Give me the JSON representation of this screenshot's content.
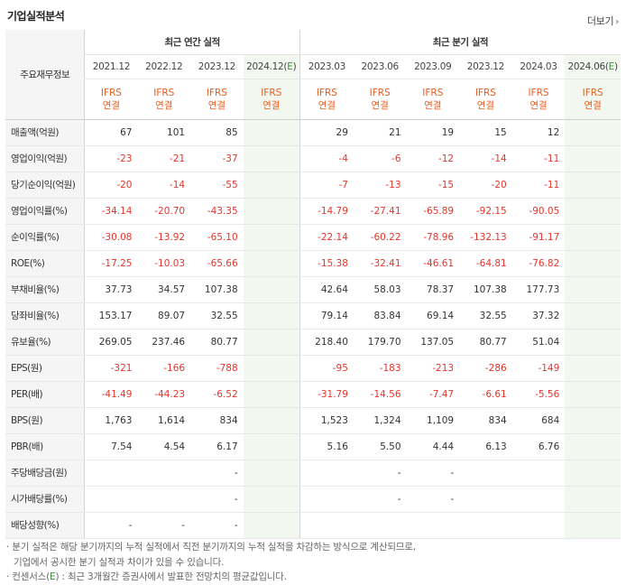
{
  "title": "기업실적분석",
  "more_label": "더보기",
  "header": {
    "label": "주요재무정보",
    "annual_group": "최근 연간 실적",
    "quarter_group": "최근 분기 실적",
    "annual_years": [
      "2021.12",
      "2022.12",
      "2023.12",
      "2024.12(E)"
    ],
    "quarter_periods": [
      "2023.03",
      "2023.06",
      "2023.09",
      "2023.12",
      "2024.03",
      "2024.06(E)"
    ],
    "ifrs_top": "IFRS",
    "ifrs_bottom": "연결"
  },
  "rows": [
    {
      "label": "매출액(억원)",
      "annual": [
        "67",
        "101",
        "85",
        ""
      ],
      "quarter": [
        "29",
        "21",
        "19",
        "15",
        "12",
        ""
      ]
    },
    {
      "label": "영업이익(억원)",
      "annual": [
        "-23",
        "-21",
        "-37",
        ""
      ],
      "quarter": [
        "-4",
        "-6",
        "-12",
        "-14",
        "-11",
        ""
      ]
    },
    {
      "label": "당기순이익(억원)",
      "annual": [
        "-20",
        "-14",
        "-55",
        ""
      ],
      "quarter": [
        "-7",
        "-13",
        "-15",
        "-20",
        "-11",
        ""
      ]
    },
    {
      "label": "영업이익률(%)",
      "annual": [
        "-34.14",
        "-20.70",
        "-43.35",
        ""
      ],
      "quarter": [
        "-14.79",
        "-27.41",
        "-65.89",
        "-92.15",
        "-90.05",
        ""
      ]
    },
    {
      "label": "순이익률(%)",
      "annual": [
        "-30.08",
        "-13.92",
        "-65.10",
        ""
      ],
      "quarter": [
        "-22.14",
        "-60.22",
        "-78.96",
        "-132.13",
        "-91.17",
        ""
      ]
    },
    {
      "label": "ROE(%)",
      "annual": [
        "-17.25",
        "-10.03",
        "-65.66",
        ""
      ],
      "quarter": [
        "-15.38",
        "-32.41",
        "-46.61",
        "-64.81",
        "-76.82",
        ""
      ]
    },
    {
      "label": "부채비율(%)",
      "annual": [
        "37.73",
        "34.57",
        "107.38",
        ""
      ],
      "quarter": [
        "42.64",
        "58.03",
        "78.37",
        "107.38",
        "177.73",
        ""
      ]
    },
    {
      "label": "당좌비율(%)",
      "annual": [
        "153.17",
        "89.07",
        "32.55",
        ""
      ],
      "quarter": [
        "79.14",
        "83.84",
        "69.14",
        "32.55",
        "37.32",
        ""
      ]
    },
    {
      "label": "유보율(%)",
      "annual": [
        "269.05",
        "237.46",
        "80.77",
        ""
      ],
      "quarter": [
        "218.40",
        "179.70",
        "137.05",
        "80.77",
        "51.04",
        ""
      ]
    },
    {
      "label": "EPS(원)",
      "annual": [
        "-321",
        "-166",
        "-788",
        ""
      ],
      "quarter": [
        "-95",
        "-183",
        "-213",
        "-286",
        "-149",
        ""
      ]
    },
    {
      "label": "PER(배)",
      "annual": [
        "-41.49",
        "-44.23",
        "-6.52",
        ""
      ],
      "quarter": [
        "-31.79",
        "-14.56",
        "-7.47",
        "-6.61",
        "-5.56",
        ""
      ]
    },
    {
      "label": "BPS(원)",
      "annual": [
        "1,763",
        "1,614",
        "834",
        ""
      ],
      "quarter": [
        "1,523",
        "1,324",
        "1,109",
        "834",
        "684",
        ""
      ]
    },
    {
      "label": "PBR(배)",
      "annual": [
        "7.54",
        "4.54",
        "6.17",
        ""
      ],
      "quarter": [
        "5.16",
        "5.50",
        "4.44",
        "6.13",
        "6.76",
        ""
      ]
    },
    {
      "label": "주당배당금(원)",
      "annual": [
        "",
        "",
        "-",
        ""
      ],
      "quarter": [
        "",
        "-",
        "-",
        "",
        "",
        ""
      ]
    },
    {
      "label": "시가배당률(%)",
      "annual": [
        "",
        "",
        "-",
        ""
      ],
      "quarter": [
        "",
        "-",
        "-",
        "",
        "",
        ""
      ]
    },
    {
      "label": "배당성향(%)",
      "annual": [
        "-",
        "-",
        "-",
        ""
      ],
      "quarter": [
        "",
        "",
        "",
        "",
        "",
        ""
      ]
    }
  ],
  "notes": [
    "· 분기 실적은 해당 분기까지의 누적 실적에서 직전 분기까지의 누적 실적을 차감하는 방식으로 계산되므로,",
    "기업에서 공시한 분기 실적과 차이가 있을 수 있습니다.",
    "· 컨센서스(E) : 최근 3개월간 증권사에서 발표한 전망치의 평균값입니다."
  ],
  "colors": {
    "negative": "#e5352b",
    "ifrs": "#ea5d1e",
    "estimate_bg": "#f2f8ef",
    "estimate_mark": "#3a8d3a"
  }
}
